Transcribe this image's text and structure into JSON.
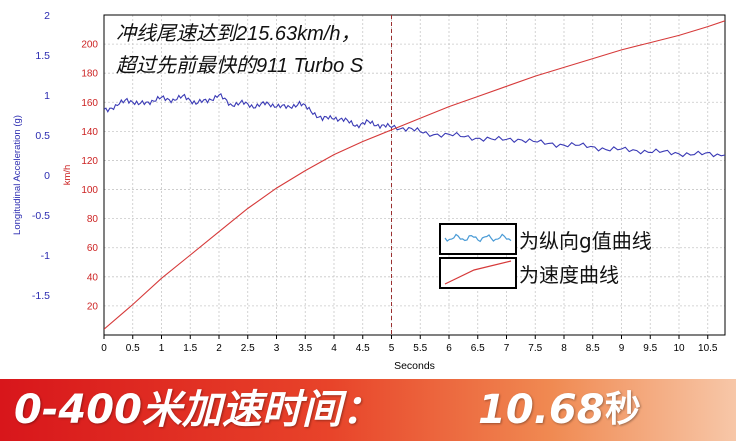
{
  "chart_data": {
    "type": "line",
    "annotation": [
      "冲线尾速达到215.63km/h，",
      "超过先前最快的911 Turbo S"
    ],
    "xlabel": "Seconds",
    "xlim": [
      0,
      10.8
    ],
    "x_ticks": [
      "0",
      "0.5",
      "1",
      "1.5",
      "2",
      "2.5",
      "3",
      "3.5",
      "4",
      "4.5",
      "5",
      "5.5",
      "6",
      "6.5",
      "7",
      "7.5",
      "8",
      "8.5",
      "9",
      "9.5",
      "10",
      "10.5"
    ],
    "y_left": {
      "label": "Longitudinal Acceleration (g)",
      "range": [
        -2,
        2
      ],
      "ticks": [
        "2",
        "1.5",
        "1",
        "0.5",
        "0",
        "-0.5",
        "-1",
        "-1.5"
      ],
      "color": "#2b2bb0"
    },
    "y_right": {
      "label": "km/h",
      "range": [
        0,
        220
      ],
      "ticks": [
        "200",
        "180",
        "160",
        "140",
        "120",
        "100",
        "80",
        "60",
        "40",
        "20"
      ],
      "color": "#cc2222"
    },
    "grid": true,
    "marker_x": 5,
    "series": [
      {
        "legend": "为纵向g值曲线",
        "axis": "left",
        "color": "#3a3ab5",
        "x": [
          0,
          0.2,
          0.4,
          0.6,
          0.8,
          1.0,
          1.2,
          1.4,
          1.6,
          1.8,
          2.0,
          2.2,
          2.4,
          2.6,
          2.8,
          3.0,
          3.2,
          3.4,
          3.6,
          3.8,
          4.0,
          4.2,
          4.4,
          4.6,
          4.8,
          5.0,
          5.3,
          5.6,
          6.0,
          6.4,
          6.8,
          7.2,
          7.6,
          8.0,
          8.4,
          8.8,
          9.2,
          9.6,
          10.0,
          10.4,
          10.8
        ],
        "y": [
          0.82,
          0.85,
          0.95,
          0.88,
          0.92,
          0.96,
          0.94,
          0.98,
          0.9,
          0.93,
          1.0,
          0.88,
          0.9,
          0.86,
          0.89,
          0.87,
          0.84,
          0.9,
          0.8,
          0.7,
          0.72,
          0.68,
          0.62,
          0.66,
          0.62,
          0.6,
          0.58,
          0.52,
          0.5,
          0.47,
          0.44,
          0.45,
          0.4,
          0.38,
          0.36,
          0.32,
          0.31,
          0.29,
          0.27,
          0.26,
          0.25
        ]
      },
      {
        "legend": "为速度曲线",
        "axis": "right",
        "color": "#d63a3a",
        "x": [
          0,
          0.5,
          1.0,
          1.5,
          2.0,
          2.5,
          3.0,
          3.5,
          4.0,
          4.5,
          5.0,
          5.5,
          6.0,
          6.5,
          7.0,
          7.5,
          8.0,
          8.5,
          9.0,
          9.5,
          10.0,
          10.5,
          10.8
        ],
        "y": [
          4,
          21,
          39,
          55,
          71,
          87,
          101,
          113,
          124,
          133,
          141,
          149,
          157,
          164,
          171,
          178,
          184,
          190,
          196,
          201,
          206,
          212,
          216
        ]
      }
    ]
  },
  "banner": {
    "title": "0-400米加速时间：",
    "value": "10.68",
    "unit": "秒"
  },
  "colors": {
    "banner_start": "#d8161b",
    "banner_end": "#f7c7a8"
  }
}
